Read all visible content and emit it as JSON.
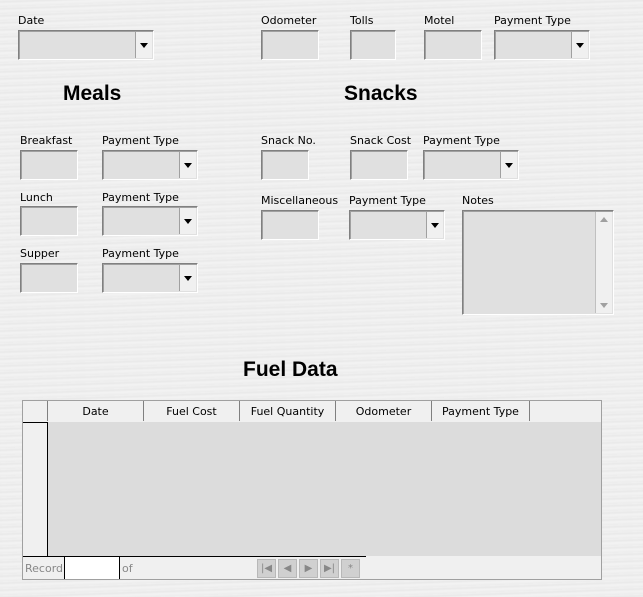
{
  "top": {
    "date_label": "Date",
    "odometer_label": "Odometer",
    "tolls_label": "Tolls",
    "motel_label": "Motel",
    "payment_type_label": "Payment Type"
  },
  "meals": {
    "title": "Meals",
    "breakfast_label": "Breakfast",
    "lunch_label": "Lunch",
    "supper_label": "Supper",
    "payment_type_label": "Payment Type"
  },
  "snacks": {
    "title": "Snacks",
    "snack_no_label": "Snack No.",
    "snack_cost_label": "Snack Cost",
    "payment_type_label": "Payment Type",
    "misc_label": "Miscellaneous",
    "notes_label": "Notes"
  },
  "fuel": {
    "title": "Fuel Data",
    "columns": [
      "Date",
      "Fuel Cost",
      "Fuel Quantity",
      "Odometer",
      "Payment Type"
    ],
    "record_label": "Record",
    "of_label": "of",
    "record_value": ""
  }
}
